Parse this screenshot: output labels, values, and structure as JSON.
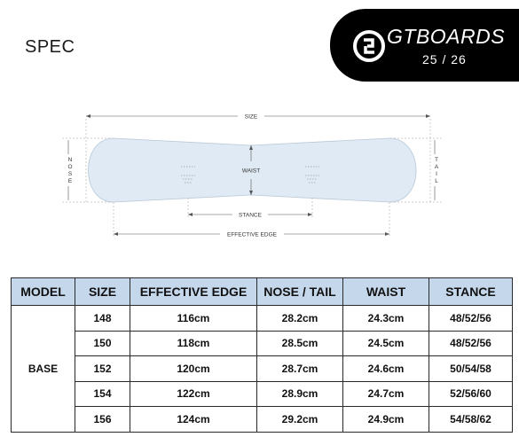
{
  "header": {
    "title": "SPEC"
  },
  "brand": {
    "name": "GTBOARDS",
    "season": "25 / 26",
    "accent": "#000000"
  },
  "diagram": {
    "size_label": "SIZE",
    "nose_label": "NOSE",
    "tail_label": "TAIL",
    "waist_label": "WAIST",
    "stance_label": "STANCE",
    "effective_edge_label": "EFFECTIVE EDGE",
    "board_fill": "#dfeaf4"
  },
  "table": {
    "header_bg": "#c5d7ea",
    "columns": [
      "MODEL",
      "SIZE",
      "EFFECTIVE EDGE",
      "NOSE / TAIL",
      "WAIST",
      "STANCE"
    ],
    "model": "BASE",
    "rows": [
      [
        "148",
        "116cm",
        "28.2cm",
        "24.3cm",
        "48/52/56"
      ],
      [
        "150",
        "118cm",
        "28.5cm",
        "24.5cm",
        "48/52/56"
      ],
      [
        "152",
        "120cm",
        "28.7cm",
        "24.6cm",
        "50/54/58"
      ],
      [
        "154",
        "122cm",
        "28.9cm",
        "24.7cm",
        "52/56/60"
      ],
      [
        "156",
        "124cm",
        "29.2cm",
        "24.9cm",
        "54/58/62"
      ]
    ]
  }
}
